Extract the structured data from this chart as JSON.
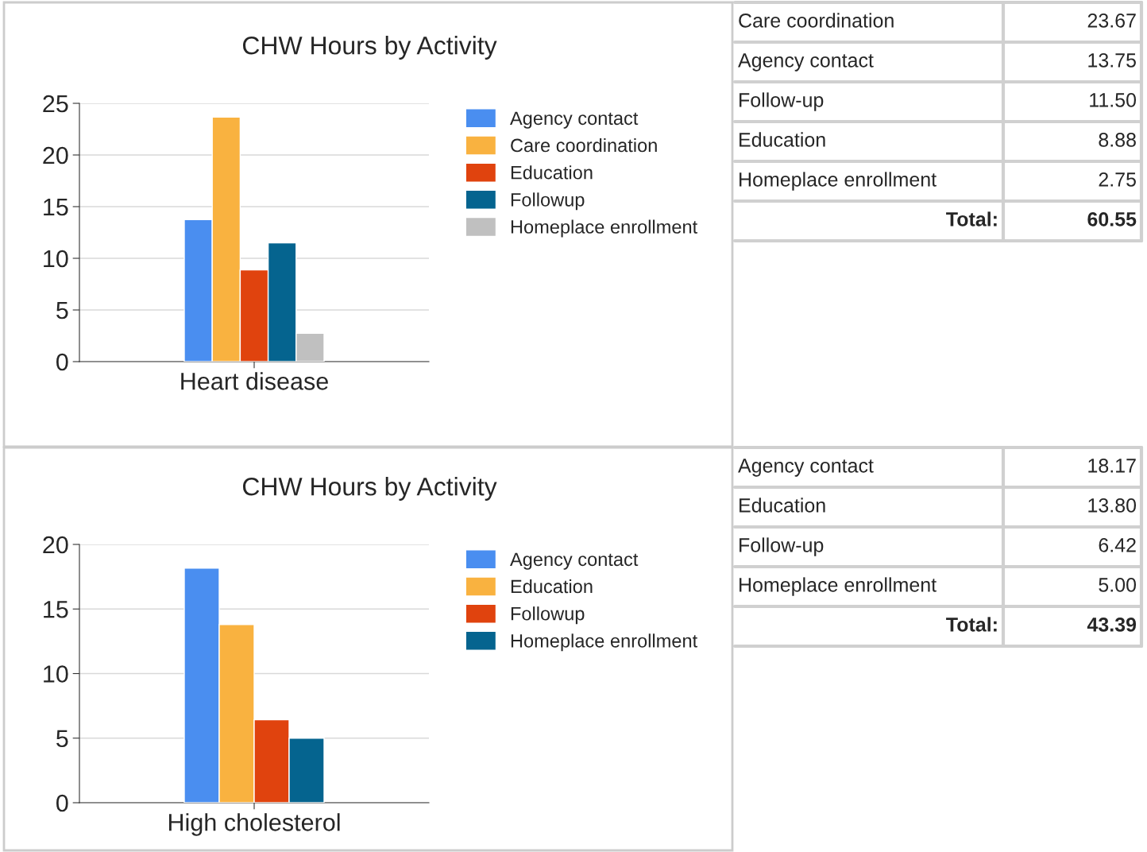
{
  "chart_data": [
    {
      "type": "bar",
      "title": "CHW Hours by Activity",
      "categories": [
        "Heart disease"
      ],
      "ylim": [
        0,
        25
      ],
      "yticks": [
        0,
        5,
        10,
        15,
        20,
        25
      ],
      "grid": "y",
      "legend": "right",
      "series": [
        {
          "name": "Agency contact",
          "color": "#4a8ef0",
          "values": [
            13.75
          ]
        },
        {
          "name": "Care coordination",
          "color": "#f9b240",
          "values": [
            23.67
          ]
        },
        {
          "name": "Education",
          "color": "#e0430e",
          "values": [
            8.88
          ]
        },
        {
          "name": "Followup",
          "color": "#05648f",
          "values": [
            11.5
          ]
        },
        {
          "name": "Homeplace enrollment",
          "color": "#c0c0c0",
          "values": [
            2.75
          ]
        }
      ]
    },
    {
      "type": "other",
      "categories": [
        "Care coordination",
        "Agency contact",
        "Follow-up",
        "Education",
        "Homeplace enrollment"
      ],
      "value_labels": [
        "23.67",
        "13.75",
        "11.50",
        "8.88",
        "2.75"
      ],
      "annotations": [
        "Total:"
      ],
      "totals": [
        "60.55"
      ]
    },
    {
      "type": "bar",
      "title": "CHW Hours by Activity",
      "categories": [
        "High cholesterol"
      ],
      "ylim": [
        0,
        20
      ],
      "yticks": [
        0,
        5,
        10,
        15,
        20
      ],
      "grid": "y",
      "legend": "right",
      "series": [
        {
          "name": "Agency contact",
          "color": "#4a8ef0",
          "values": [
            18.17
          ]
        },
        {
          "name": "Education",
          "color": "#f9b240",
          "values": [
            13.8
          ]
        },
        {
          "name": "Followup",
          "color": "#e0430e",
          "values": [
            6.42
          ]
        },
        {
          "name": "Homeplace enrollment",
          "color": "#05648f",
          "values": [
            5.0
          ]
        }
      ]
    },
    {
      "type": "other",
      "categories": [
        "Agency contact",
        "Education",
        "Follow-up",
        "Homeplace enrollment"
      ],
      "value_labels": [
        "18.17",
        "13.80",
        "6.42",
        "5.00"
      ],
      "annotations": [
        "Total:"
      ],
      "totals": [
        "43.39"
      ]
    }
  ]
}
